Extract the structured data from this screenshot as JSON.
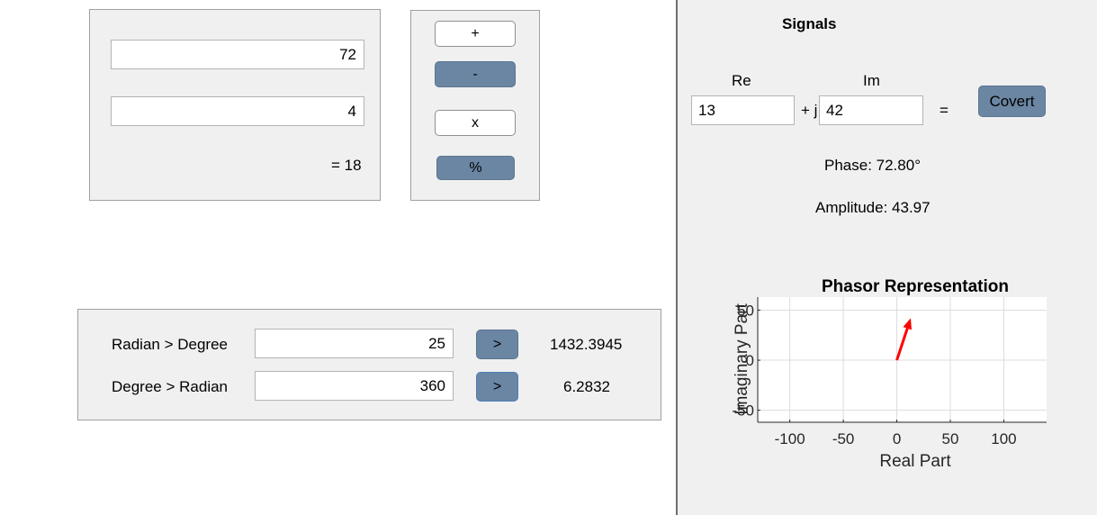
{
  "calculator": {
    "operand_a": "72",
    "operand_b": "4",
    "result": "= 18",
    "ops": {
      "plus": "+",
      "minus": "-",
      "times": "x",
      "percent": "%"
    }
  },
  "converter": {
    "rad_to_deg_label": "Radian > Degree",
    "rad_to_deg_value": "25",
    "rad_to_deg_button": ">",
    "rad_to_deg_result": "1432.3945",
    "deg_to_rad_label": "Degree > Radian",
    "deg_to_rad_value": "360",
    "deg_to_rad_button": ">",
    "deg_to_rad_result": "6.2832"
  },
  "signals": {
    "title": "Signals",
    "re_label": "Re",
    "im_label": "Im",
    "re_value": "13",
    "plus_j": "+ j",
    "im_value": "42",
    "equals": "=",
    "convert_button": "Covert",
    "phase": "Phase: 72.80°",
    "amplitude": "Amplitude: 43.97"
  },
  "chart_data": {
    "type": "scatter",
    "title": "Phasor Representation",
    "xlabel": "Real Part",
    "ylabel": "Imaginary Part",
    "xlim": [
      -130,
      140
    ],
    "ylim": [
      -62,
      63
    ],
    "xticks": [
      -100,
      -50,
      0,
      50,
      100
    ],
    "yticks": [
      -50,
      0,
      50
    ],
    "grid": true,
    "series": [
      {
        "vector": {
          "x0": 0,
          "y0": 0,
          "x1": 13,
          "y1": 42
        },
        "color": "#ff0000"
      }
    ]
  }
}
